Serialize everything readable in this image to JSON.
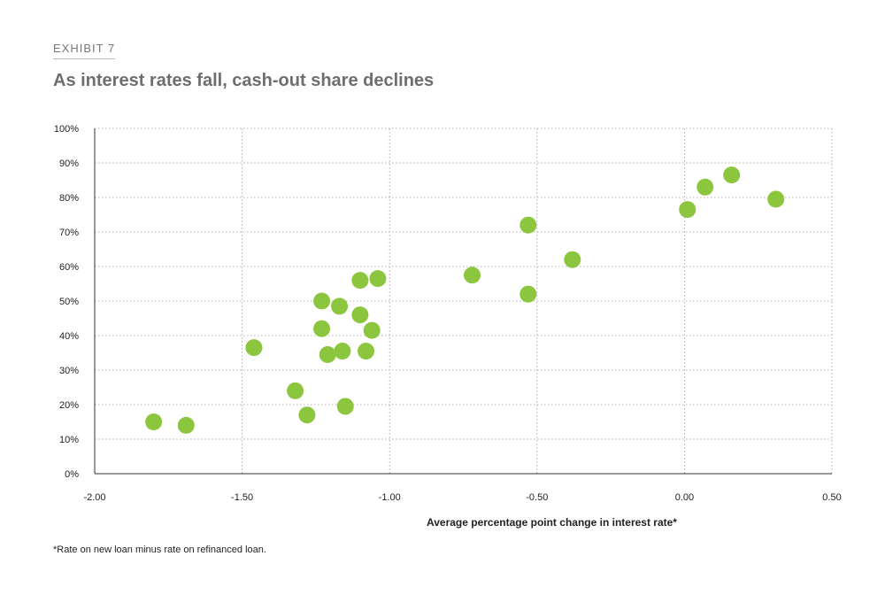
{
  "header": {
    "exhibit_label": "EXHIBIT 7",
    "title": "As interest rates fall, cash-out share declines"
  },
  "footnote": "*Rate on new loan minus rate on refinanced loan.",
  "colors": {
    "point": "#8cc63f",
    "axis": "#333333",
    "grid": "#9a9a9a"
  },
  "chart_data": {
    "type": "scatter",
    "title": "As interest rates fall, cash-out share declines",
    "xlabel": "Average percentage point change in interest rate*",
    "ylabel": "",
    "xlim": [
      -2.0,
      0.5
    ],
    "ylim": [
      0,
      100
    ],
    "x_ticks": [
      -2.0,
      -1.5,
      -1.0,
      -0.5,
      0.0,
      0.5
    ],
    "x_tick_labels": [
      "-2.00",
      "-1.50",
      "-1.00",
      "-0.50",
      "0.00",
      "0.50"
    ],
    "y_ticks": [
      0,
      10,
      20,
      30,
      40,
      50,
      60,
      70,
      80,
      90,
      100
    ],
    "y_tick_labels": [
      "0%",
      "10%",
      "20%",
      "30%",
      "40%",
      "50%",
      "60%",
      "70%",
      "80%",
      "90%",
      "100%"
    ],
    "grid": true,
    "legend": "none",
    "points": [
      {
        "x": -1.8,
        "y": 15
      },
      {
        "x": -1.69,
        "y": 14
      },
      {
        "x": -1.46,
        "y": 36.5
      },
      {
        "x": -1.32,
        "y": 24
      },
      {
        "x": -1.28,
        "y": 17
      },
      {
        "x": -1.23,
        "y": 50
      },
      {
        "x": -1.23,
        "y": 42
      },
      {
        "x": -1.21,
        "y": 34.5
      },
      {
        "x": -1.17,
        "y": 48.5
      },
      {
        "x": -1.16,
        "y": 35.5
      },
      {
        "x": -1.15,
        "y": 19.5
      },
      {
        "x": -1.1,
        "y": 56
      },
      {
        "x": -1.1,
        "y": 46
      },
      {
        "x": -1.08,
        "y": 35.5
      },
      {
        "x": -1.06,
        "y": 41.5
      },
      {
        "x": -1.04,
        "y": 56.5
      },
      {
        "x": -0.72,
        "y": 57.5
      },
      {
        "x": -0.53,
        "y": 72
      },
      {
        "x": -0.53,
        "y": 52
      },
      {
        "x": -0.38,
        "y": 62
      },
      {
        "x": 0.01,
        "y": 76.5
      },
      {
        "x": 0.07,
        "y": 83
      },
      {
        "x": 0.16,
        "y": 86.5
      },
      {
        "x": 0.31,
        "y": 79.5
      }
    ]
  }
}
